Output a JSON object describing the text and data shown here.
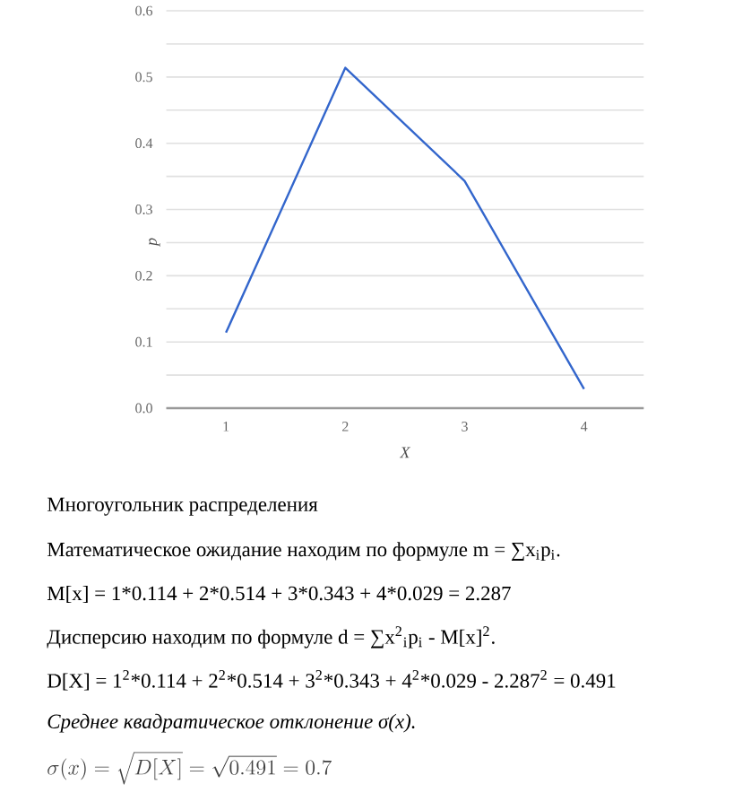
{
  "chart_data": {
    "type": "line",
    "xlabel": "X",
    "ylabel": "p",
    "x": [
      1,
      2,
      3,
      4
    ],
    "values": [
      0.114,
      0.514,
      0.343,
      0.029
    ],
    "color": "#3366cc",
    "line_style": "solid",
    "xlim": [
      0.5,
      4.5
    ],
    "xticks": [
      1,
      2,
      3,
      4
    ],
    "ylim": [
      0,
      0.6
    ],
    "yticks": [
      {
        "value": 0,
        "label": "0.0"
      },
      {
        "value": 0.05,
        "label": null
      },
      0.1,
      {
        "value": 0.15,
        "label": null
      },
      0.2,
      {
        "value": 0.25,
        "label": null
      },
      0.3,
      {
        "value": 0.35,
        "label": null
      },
      0.4,
      {
        "value": 0.45,
        "label": null
      },
      0.5,
      {
        "value": 0.55,
        "label": null
      },
      0.6
    ],
    "grid": "y",
    "annotations": [
      "Многоугольник распределения",
      "Математическое ожидание находим по формуле m = ∑x$_{i}$p$_{i}$.",
      "M[x] = 1*0.114 + 2*0.514 + 3*0.343 + 4*0.029 = 2.287",
      "Дисперсию находим по формуле d = ∑x$^{2}$$_{i}$p$_{i}$ - M[x]$^{2}$.",
      "D[X] = 1$^{2}$*0.114 + 2$^{2}$*0.514 + 3$^{2}$*0.343 + 4$^{2}$*0.029 - 2.287$^{2}$ = 0.491",
      "Среднее квадратическое отклонение σ(x).",
      "\\sigma(x)=\\sqrt{D[X]}=\\sqrt{0.491}=0.7"
    ]
  }
}
